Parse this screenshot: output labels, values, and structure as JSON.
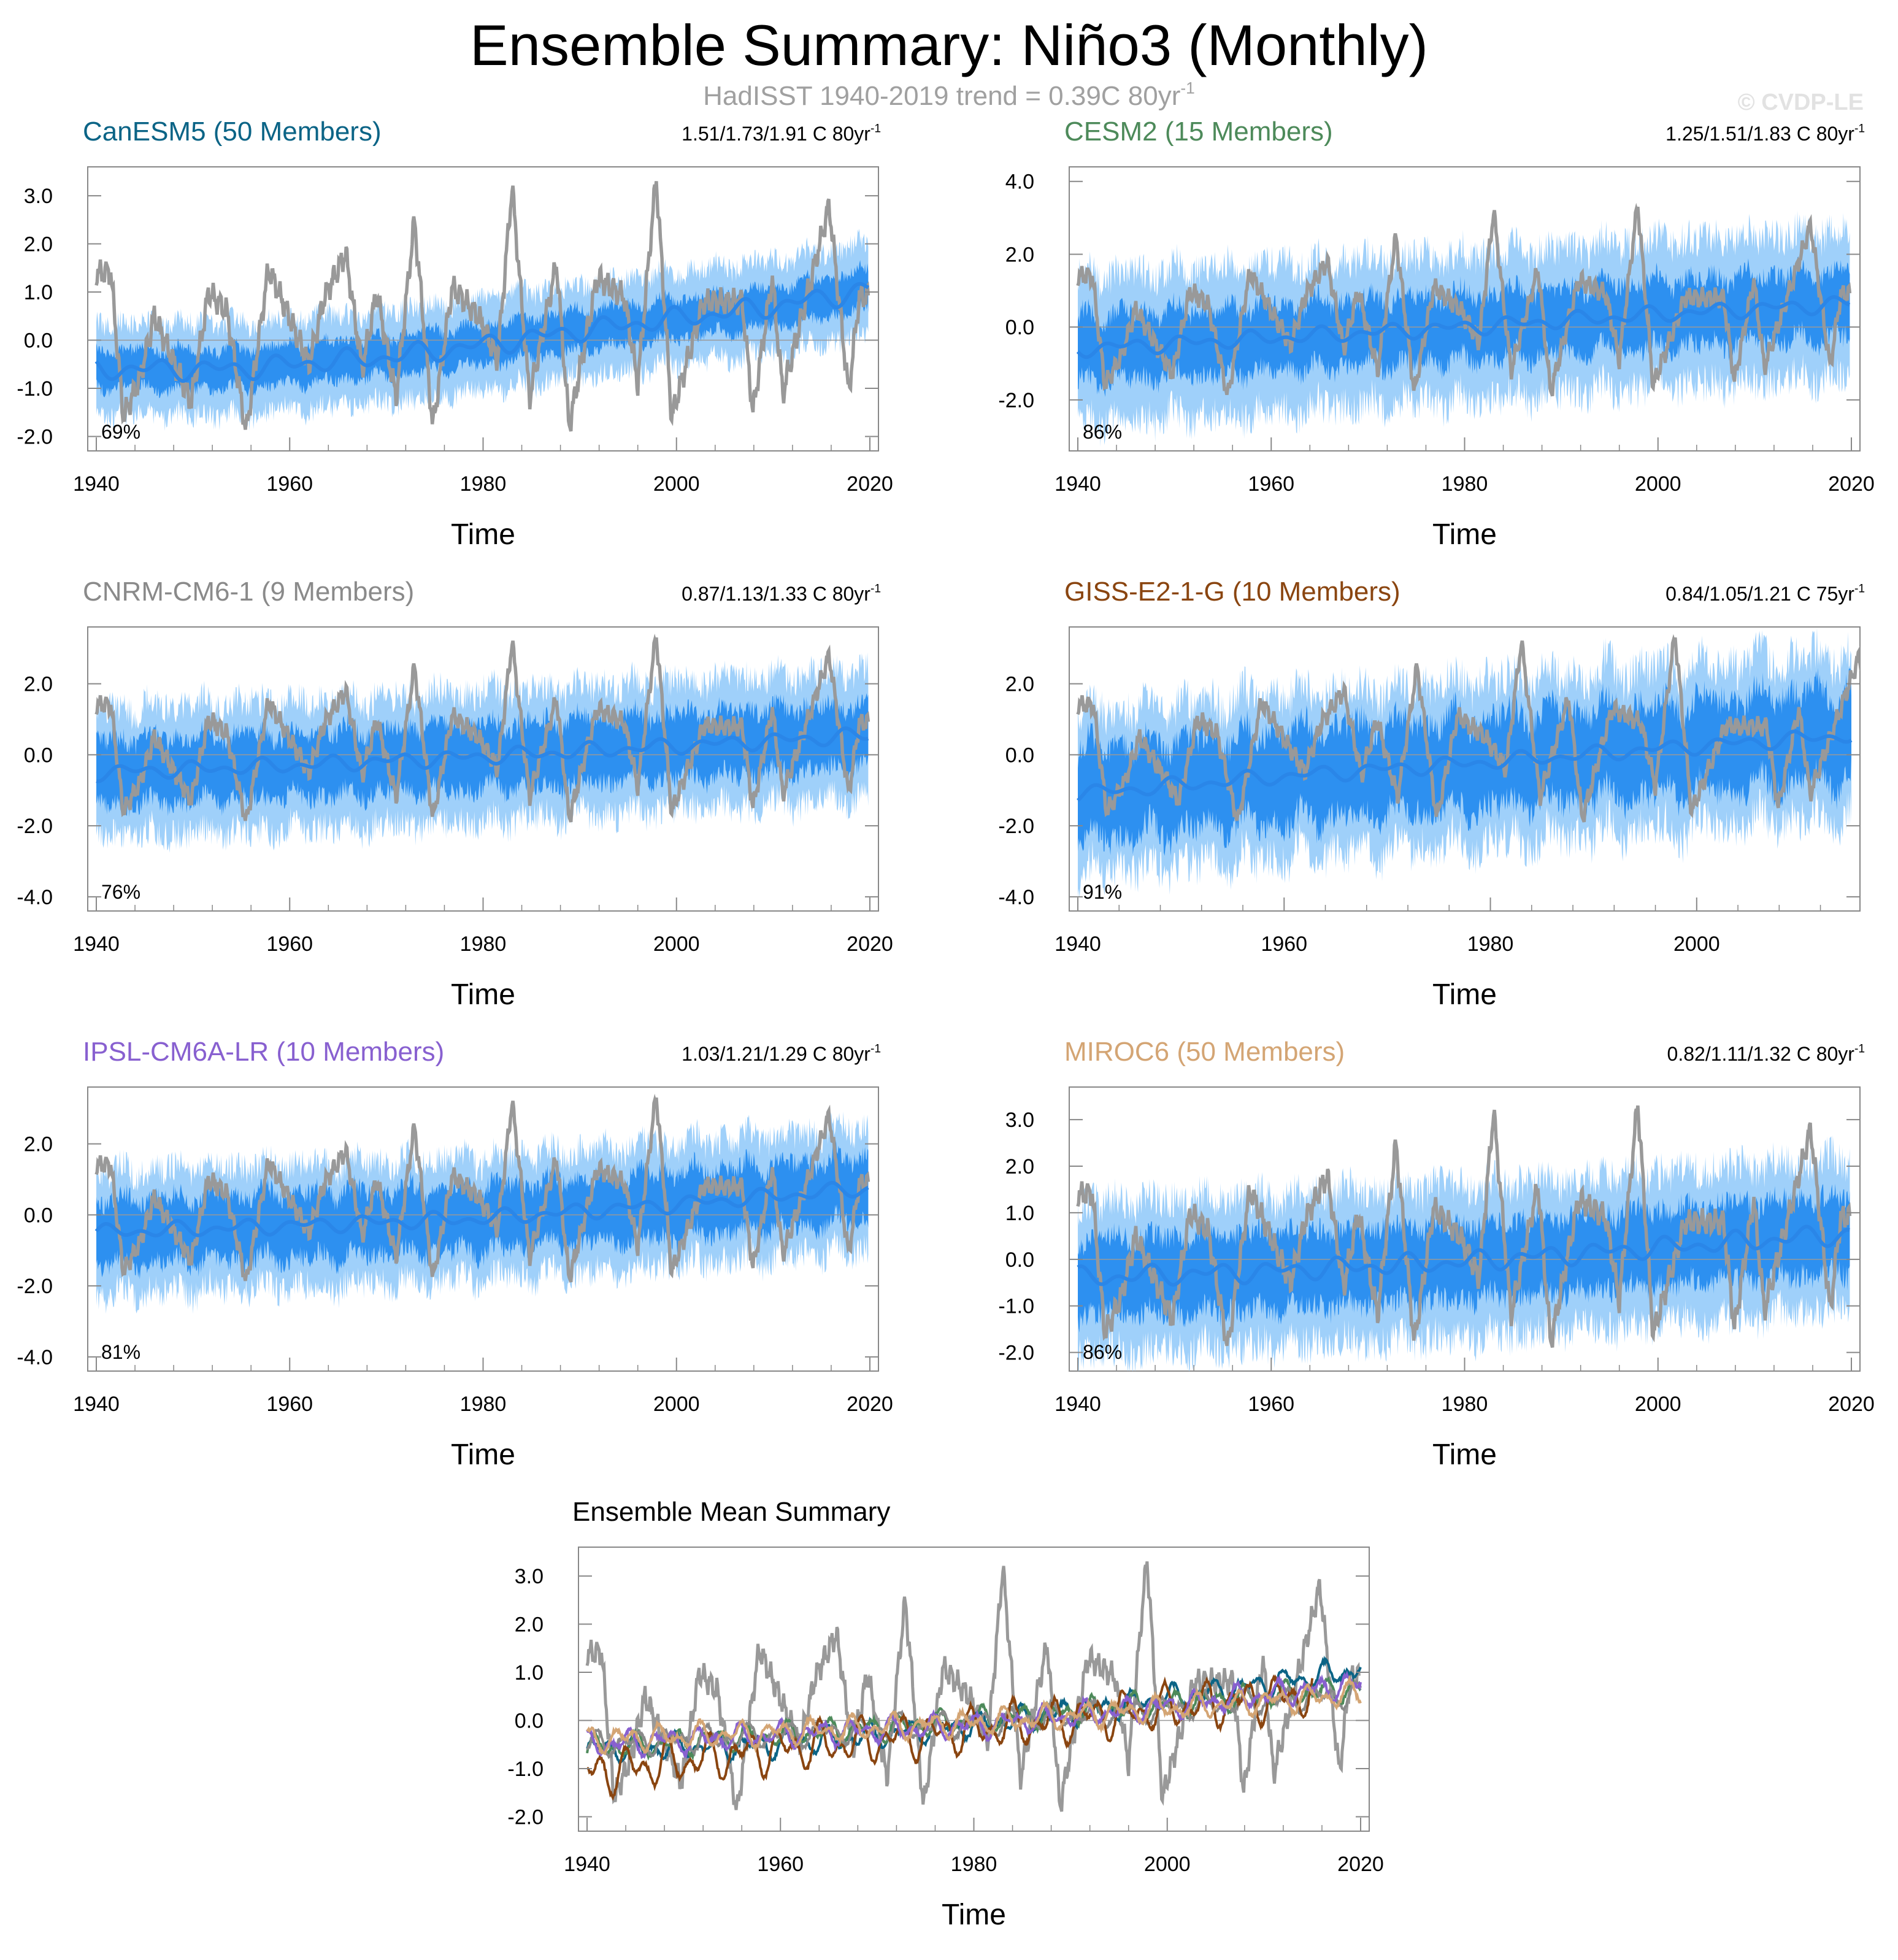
{
  "header": {
    "title": "Ensemble Summary: Niño3 (Monthly)",
    "subtitle_main": "HadISST 1940-2019 trend = 0.39C 80yr",
    "subtitle_sup": "-1",
    "copyright": "© CVDP-LE"
  },
  "colors": {
    "observed": "#999999",
    "spread_outer": "#9fd0fa",
    "spread_inner": "#2d90f0",
    "ensemble_mean": "#2a86e8",
    "zero_line": "#999999"
  },
  "chart_data": [
    {
      "type": "line",
      "title": "CanESM5 (50 Members)",
      "title_color": "#0b6486",
      "trend_text": "1.51/1.73/1.91 C 80yr",
      "trend_sup": "-1",
      "percent": "69%",
      "xlabel": "Time",
      "xlim": [
        1940,
        2020
      ],
      "ylim": [
        -2.3,
        3.6
      ],
      "yticks": [
        -2.0,
        -1.0,
        0.0,
        1.0,
        2.0,
        3.0
      ],
      "ytick_labels": [
        "-2.0",
        "-1.0",
        "0.0",
        "1.0",
        "2.0",
        "3.0"
      ],
      "xticks": [
        1940,
        1960,
        1980,
        2000,
        2020
      ],
      "xtick_labels": [
        "1940",
        "1960",
        "1980",
        "2000",
        "2020"
      ],
      "mean_series": {
        "x": [
          1940,
          1950,
          1955,
          1960,
          1970,
          1980,
          1990,
          2000,
          2010,
          2020
        ],
        "y": [
          -0.6,
          -0.6,
          -0.6,
          -0.5,
          -0.35,
          -0.1,
          0.2,
          0.45,
          0.7,
          1.05
        ]
      },
      "spread_outer_halfwidth": 1.0,
      "spread_inner_halfwidth": 0.45,
      "noise": 0.25
    },
    {
      "type": "line",
      "title": "CESM2 (15 Members)",
      "title_color": "#4d8a5a",
      "trend_text": "1.25/1.51/1.83 C 80yr",
      "trend_sup": "-1",
      "percent": "86%",
      "xlabel": "Time",
      "xlim": [
        1940,
        2020
      ],
      "ylim": [
        -3.4,
        4.4
      ],
      "yticks": [
        -2.0,
        0.0,
        2.0,
        4.0
      ],
      "ytick_labels": [
        "-2.0",
        "0.0",
        "2.0",
        "4.0"
      ],
      "xticks": [
        1940,
        1960,
        1980,
        2000,
        2020
      ],
      "xtick_labels": [
        "1940",
        "1960",
        "1980",
        "2000",
        "2020"
      ],
      "mean_series": {
        "x": [
          1940,
          1960,
          1980,
          2000,
          2020
        ],
        "y": [
          -0.6,
          -0.3,
          0.0,
          0.35,
          0.65
        ]
      },
      "spread_outer_halfwidth": 2.1,
      "spread_inner_halfwidth": 1.0,
      "noise": 0.5
    },
    {
      "type": "line",
      "title": "CNRM-CM6-1 (9 Members)",
      "title_color": "#8a8a8a",
      "trend_text": "0.87/1.13/1.33 C 80yr",
      "trend_sup": "-1",
      "percent": "76%",
      "xlabel": "Time",
      "xlim": [
        1940,
        2020
      ],
      "ylim": [
        -4.4,
        3.6
      ],
      "yticks": [
        -4.0,
        -2.0,
        0.0,
        2.0
      ],
      "ytick_labels": [
        "-4.0",
        "-2.0",
        "0.0",
        "2.0"
      ],
      "xticks": [
        1940,
        1960,
        1980,
        2000,
        2020
      ],
      "xtick_labels": [
        "1940",
        "1960",
        "1980",
        "2000",
        "2020"
      ],
      "mean_series": {
        "x": [
          1940,
          1960,
          1980,
          2000,
          2020
        ],
        "y": [
          -0.5,
          -0.3,
          -0.05,
          0.25,
          0.55
        ]
      },
      "spread_outer_halfwidth": 1.9,
      "spread_inner_halfwidth": 1.0,
      "noise": 0.45
    },
    {
      "type": "line",
      "title": "GISS-E2-1-G (10 Members)",
      "title_color": "#8a4510",
      "trend_text": "0.84/1.05/1.21 C 75yr",
      "trend_sup": "-1",
      "percent": "91%",
      "xlabel": "Time",
      "xlim": [
        1940,
        2015
      ],
      "ylim": [
        -4.4,
        3.6
      ],
      "yticks": [
        -4.0,
        -2.0,
        0.0,
        2.0
      ],
      "ytick_labels": [
        "-4.0",
        "-2.0",
        "0.0",
        "2.0"
      ],
      "xticks": [
        1940,
        1960,
        1980,
        2000
      ],
      "xtick_labels": [
        "1940",
        "1960",
        "1980",
        "2000"
      ],
      "mean_series": {
        "x": [
          1940,
          1960,
          1980,
          2000,
          2015
        ],
        "y": [
          -1.1,
          -0.6,
          -0.2,
          0.25,
          0.55
        ]
      },
      "spread_outer_halfwidth": 2.4,
      "spread_inner_halfwidth": 1.4,
      "noise": 0.8
    },
    {
      "type": "line",
      "title": "IPSL-CM6A-LR (10 Members)",
      "title_color": "#8860d0",
      "trend_text": "1.03/1.21/1.29 C 80yr",
      "trend_sup": "-1",
      "percent": "81%",
      "xlabel": "Time",
      "xlim": [
        1940,
        2020
      ],
      "ylim": [
        -4.4,
        3.6
      ],
      "yticks": [
        -4.0,
        -2.0,
        0.0,
        2.0
      ],
      "ytick_labels": [
        "-4.0",
        "-2.0",
        "0.0",
        "2.0"
      ],
      "xticks": [
        1940,
        1960,
        1980,
        2000,
        2020
      ],
      "xtick_labels": [
        "1940",
        "1960",
        "1980",
        "2000",
        "2020"
      ],
      "mean_series": {
        "x": [
          1940,
          1960,
          1980,
          2000,
          2020
        ],
        "y": [
          -0.5,
          -0.3,
          -0.1,
          0.3,
          0.75
        ]
      },
      "spread_outer_halfwidth": 1.8,
      "spread_inner_halfwidth": 1.0,
      "noise": 0.5
    },
    {
      "type": "line",
      "title": "MIROC6 (50 Members)",
      "title_color": "#d4a574",
      "trend_text": "0.82/1.11/1.32 C 80yr",
      "trend_sup": "-1",
      "percent": "86%",
      "xlabel": "Time",
      "xlim": [
        1940,
        2020
      ],
      "ylim": [
        -2.4,
        3.7
      ],
      "yticks": [
        -2.0,
        -1.0,
        0.0,
        1.0,
        2.0,
        3.0
      ],
      "ytick_labels": [
        "-2.0",
        "-1.0",
        "0.0",
        "1.0",
        "2.0",
        "3.0"
      ],
      "xticks": [
        1940,
        1960,
        1980,
        2000,
        2020
      ],
      "xtick_labels": [
        "1940",
        "1960",
        "1980",
        "2000",
        "2020"
      ],
      "mean_series": {
        "x": [
          1940,
          1960,
          1980,
          2000,
          2020
        ],
        "y": [
          -0.4,
          -0.25,
          -0.05,
          0.25,
          0.55
        ]
      },
      "spread_outer_halfwidth": 1.7,
      "spread_inner_halfwidth": 0.9,
      "noise": 0.3
    },
    {
      "type": "line",
      "title": "Ensemble Mean Summary",
      "title_color": "#000000",
      "xlabel": "Time",
      "xlim": [
        1940,
        2020
      ],
      "ylim": [
        -2.3,
        3.6
      ],
      "yticks": [
        -2.0,
        -1.0,
        0.0,
        1.0,
        2.0,
        3.0
      ],
      "ytick_labels": [
        "-2.0",
        "-1.0",
        "0.0",
        "1.0",
        "2.0",
        "3.0"
      ],
      "xticks": [
        1940,
        1960,
        1980,
        2000,
        2020
      ],
      "xtick_labels": [
        "1940",
        "1960",
        "1980",
        "2000",
        "2020"
      ],
      "series": [
        {
          "name": "CanESM5",
          "color": "#0b6486",
          "x": [
            1940,
            1960,
            1980,
            2000,
            2020
          ],
          "y": [
            -0.6,
            -0.5,
            -0.1,
            0.45,
            1.05
          ]
        },
        {
          "name": "CESM2",
          "color": "#4d8a5a",
          "x": [
            1940,
            1960,
            1980,
            2000,
            2020
          ],
          "y": [
            -0.6,
            -0.3,
            0.0,
            0.35,
            0.65
          ]
        },
        {
          "name": "CNRM-CM6-1",
          "color": "#8a8a8a",
          "x": [
            1940,
            1960,
            1980,
            2000,
            2020
          ],
          "y": [
            -0.5,
            -0.3,
            -0.05,
            0.25,
            0.55
          ]
        },
        {
          "name": "GISS-E2-1-G",
          "color": "#8a4510",
          "x": [
            1940,
            1960,
            1980,
            2000,
            2015
          ],
          "y": [
            -1.1,
            -0.6,
            -0.2,
            0.25,
            0.55
          ]
        },
        {
          "name": "IPSL-CM6A-LR",
          "color": "#8860d0",
          "x": [
            1940,
            1960,
            1980,
            2000,
            2020
          ],
          "y": [
            -0.5,
            -0.3,
            -0.1,
            0.3,
            0.75
          ]
        },
        {
          "name": "MIROC6",
          "color": "#d4a574",
          "x": [
            1940,
            1960,
            1980,
            2000,
            2020
          ],
          "y": [
            -0.4,
            -0.25,
            -0.05,
            0.25,
            0.55
          ]
        }
      ]
    }
  ],
  "observed_events": [
    {
      "year": 1940.3,
      "value": 1.4
    },
    {
      "year": 1941.5,
      "value": 1.4
    },
    {
      "year": 1942.8,
      "value": -1.6
    },
    {
      "year": 1944.5,
      "value": -0.8
    },
    {
      "year": 1946.0,
      "value": 0.5
    },
    {
      "year": 1949.8,
      "value": -1.3
    },
    {
      "year": 1951.6,
      "value": 1.0
    },
    {
      "year": 1953.5,
      "value": 0.6
    },
    {
      "year": 1955.5,
      "value": -1.9
    },
    {
      "year": 1957.8,
      "value": 1.5
    },
    {
      "year": 1962.0,
      "value": -0.5
    },
    {
      "year": 1963.6,
      "value": 0.9
    },
    {
      "year": 1965.8,
      "value": 1.8
    },
    {
      "year": 1967.5,
      "value": -0.6
    },
    {
      "year": 1969.0,
      "value": 1.0
    },
    {
      "year": 1971.0,
      "value": -1.2
    },
    {
      "year": 1972.9,
      "value": 2.5
    },
    {
      "year": 1974.8,
      "value": -1.8
    },
    {
      "year": 1976.8,
      "value": 1.1
    },
    {
      "year": 1979.5,
      "value": 0.5
    },
    {
      "year": 1981.5,
      "value": -0.4
    },
    {
      "year": 1983.0,
      "value": 3.2
    },
    {
      "year": 1984.8,
      "value": -1.2
    },
    {
      "year": 1987.6,
      "value": 1.6
    },
    {
      "year": 1988.9,
      "value": -1.8
    },
    {
      "year": 1991.8,
      "value": 1.3
    },
    {
      "year": 1994.6,
      "value": 0.9
    },
    {
      "year": 1996.0,
      "value": -0.9
    },
    {
      "year": 1997.9,
      "value": 3.4
    },
    {
      "year": 1999.5,
      "value": -1.6
    },
    {
      "year": 2002.8,
      "value": 0.8
    },
    {
      "year": 2006.8,
      "value": 0.8
    },
    {
      "year": 2007.9,
      "value": -1.5
    },
    {
      "year": 2009.9,
      "value": 1.3
    },
    {
      "year": 2011.0,
      "value": -1.1
    },
    {
      "year": 2015.8,
      "value": 2.8
    },
    {
      "year": 2017.8,
      "value": -1.1
    },
    {
      "year": 2018.9,
      "value": 0.9
    }
  ]
}
